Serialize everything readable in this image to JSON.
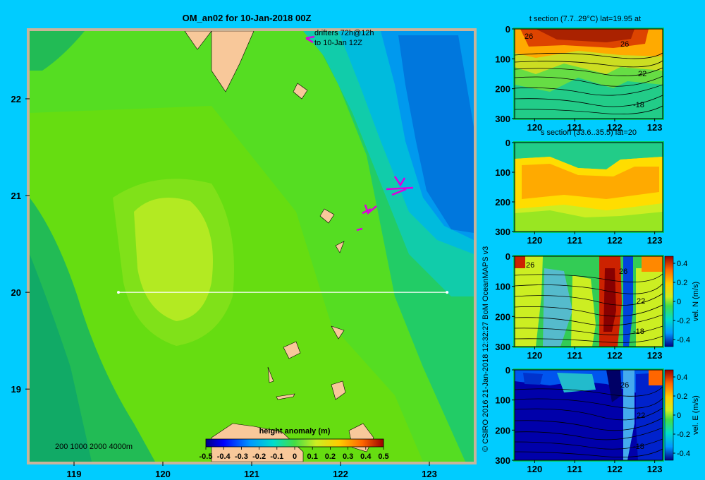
{
  "chart_data": [
    {
      "type": "heatmap",
      "title": "OM_an02 for 10-Jan-2018 00Z",
      "x_ticks": [
        119,
        120,
        121,
        122,
        123
      ],
      "y_ticks": [
        22,
        21,
        20,
        19
      ],
      "xlim": [
        118.5,
        123.5
      ],
      "ylim": [
        18.25,
        22.7
      ],
      "colorbar": {
        "label": "height anomaly  (m)",
        "ticks": [
          "-0.5",
          "-0.4",
          "-0.3",
          "-0.2",
          "-0.1",
          "0",
          "0.1",
          "0.2",
          "0.3",
          "0.4",
          "0.5"
        ],
        "range": [
          -0.5,
          0.5
        ]
      },
      "depth_legend": "200  1000  2000  4000m",
      "drifter_note": [
        "drifters 72h@12h",
        "to 10-Jan 12Z"
      ],
      "section_line": {
        "lat": 20,
        "lon_start": 119.5,
        "lon_end": 123.2
      }
    },
    {
      "type": "heatmap",
      "title": "t section (7.7..29°C) lat=19.95 at",
      "x_ticks": [
        "120",
        "121",
        "122",
        "123"
      ],
      "y_ticks": [
        "0",
        "100",
        "200",
        "300"
      ],
      "contour_labels": [
        "26",
        "26",
        "22",
        "-18"
      ]
    },
    {
      "type": "heatmap",
      "title": "s section (33.6..35.5) lat=20",
      "x_ticks": [
        "120",
        "121",
        "122",
        "123"
      ],
      "y_ticks": [
        "0",
        "100",
        "200",
        "300"
      ]
    },
    {
      "type": "heatmap",
      "title": "",
      "x_ticks": [
        "120",
        "121",
        "122",
        "123"
      ],
      "y_ticks": [
        "0",
        "100",
        "200",
        "300"
      ],
      "contour_labels": [
        "26",
        "26",
        "22",
        "-18"
      ],
      "colorbar": {
        "label": "vel. N  (m/s)",
        "ticks": [
          "0.4",
          "0.2",
          "0",
          "-0.2",
          "-0.4"
        ]
      }
    },
    {
      "type": "heatmap",
      "title": "",
      "x_ticks": [
        "120",
        "121",
        "122",
        "123"
      ],
      "y_ticks": [
        "0",
        "100",
        "200",
        "300"
      ],
      "contour_labels": [
        "26",
        "22",
        "-18"
      ],
      "colorbar": {
        "label": "vel. E  (m/s)",
        "ticks": [
          "0.4",
          "0.2",
          "0",
          "-0.2",
          "-0.4"
        ]
      }
    }
  ],
  "credit": "© CSIRO 2016    21-Jan-2018 12:32:27 BoM OceanMAPS v3",
  "colors": {
    "background": "#00ccff",
    "land": "#f8c89a",
    "frame": "#c8b49a"
  }
}
